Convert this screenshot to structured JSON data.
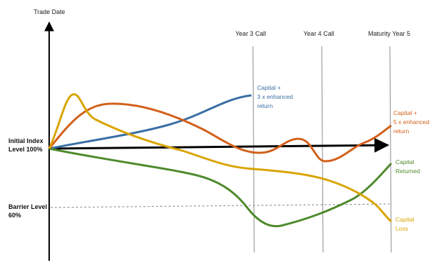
{
  "axis": {
    "y_label": "Trade Date"
  },
  "levels": {
    "initial_line1": "Initial Index",
    "initial_line2": "Level 100%",
    "barrier_line1": "Barrier Level",
    "barrier_line2": "60%"
  },
  "milestones": {
    "year3": "Year 3 Call",
    "year4": "Year 4 Call",
    "maturity": "Maturity Year 5"
  },
  "outcomes": {
    "blue": {
      "lines": [
        "Capital +",
        "3 x enhanced",
        "return"
      ],
      "color": "#3a6ea5"
    },
    "orange": {
      "lines": [
        "Capital +",
        "5 x enhanced",
        "return"
      ],
      "color": "#d2601a"
    },
    "green": {
      "lines": [
        "Capital",
        "Returned"
      ],
      "color": "#4e8a2c"
    },
    "yellow": {
      "lines": [
        "Capital",
        "Loss"
      ],
      "color": "#d9a400"
    }
  },
  "colors": {
    "axis": "#000000",
    "gridline": "#888888",
    "barrier": "#999999"
  }
}
